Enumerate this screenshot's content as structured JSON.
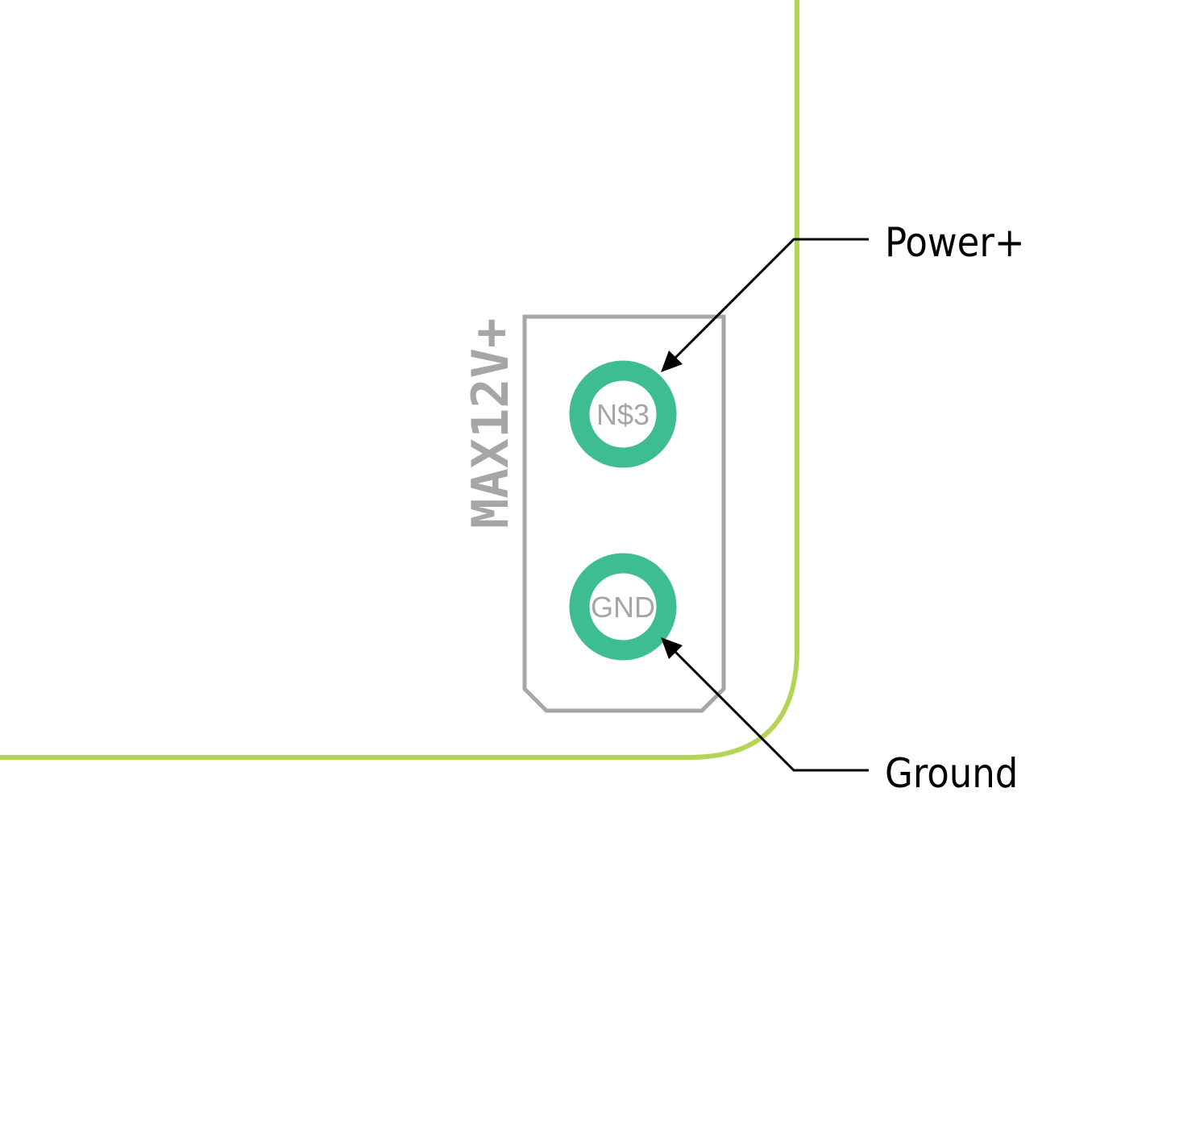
{
  "board": {
    "outline_color": "#b4d455",
    "silkscreen_color": "#a6a6a6",
    "pad_color": "#3dbd91"
  },
  "connector": {
    "label": "MAX12V+",
    "pads": [
      {
        "label": "N$3"
      },
      {
        "label": "GND"
      }
    ]
  },
  "callouts": {
    "power": "Power+",
    "ground": "Ground"
  },
  "arrow_color": "#000000"
}
